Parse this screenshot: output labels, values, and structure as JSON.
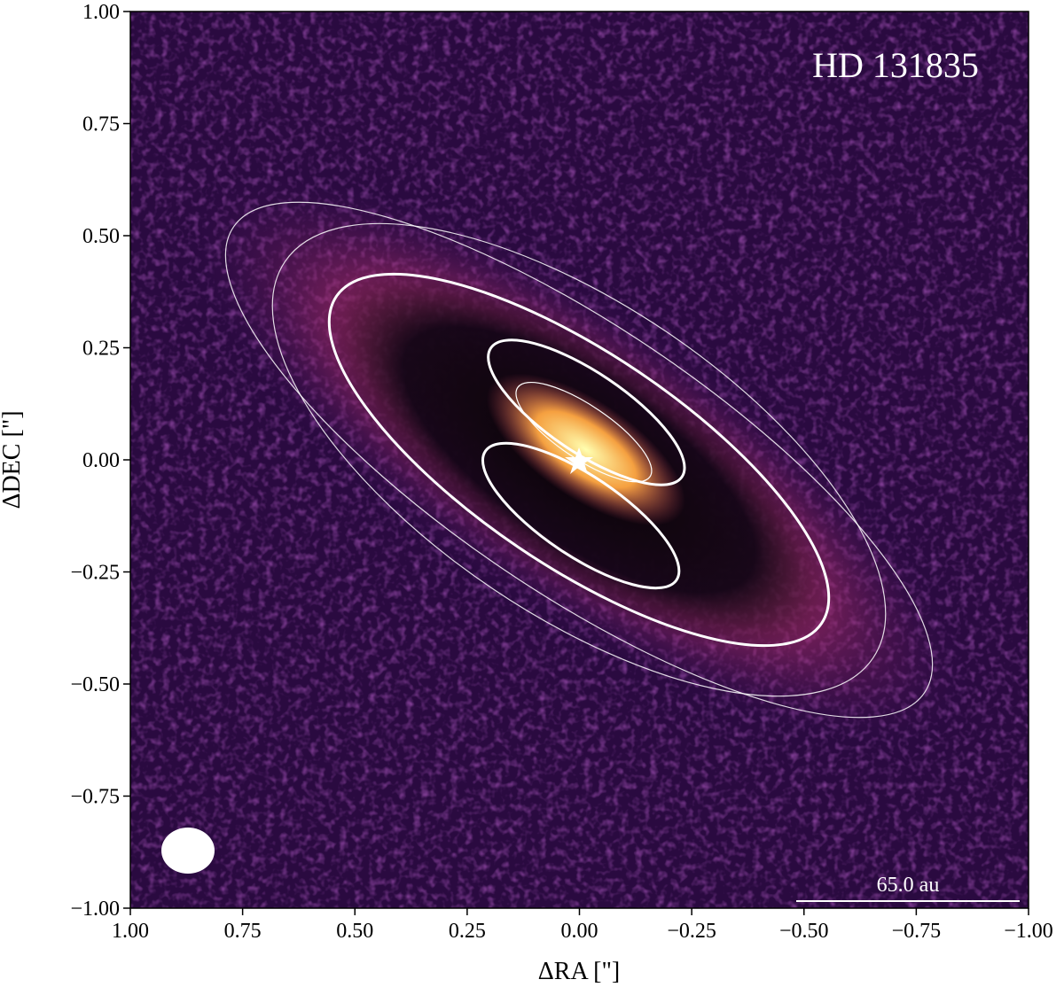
{
  "chart_data": {
    "type": "image",
    "title": "HD 131835",
    "xlabel": "ΔRA [\"]",
    "ylabel": "ΔDEC [\"]",
    "scalebar_label": "65.0 au",
    "xlim": [
      1,
      -1
    ],
    "ylim": [
      -1,
      1
    ],
    "xticks": [
      {
        "value": 1,
        "label": "1.00"
      },
      {
        "value": 0.75,
        "label": "0.75"
      },
      {
        "value": 0.5,
        "label": "0.50"
      },
      {
        "value": 0.25,
        "label": "0.25"
      },
      {
        "value": 0,
        "label": "0.00"
      },
      {
        "value": -0.25,
        "label": "−0.25"
      },
      {
        "value": -0.5,
        "label": "−0.50"
      },
      {
        "value": -0.75,
        "label": "−0.75"
      },
      {
        "value": -1,
        "label": "−1.00"
      }
    ],
    "yticks": [
      {
        "value": -1,
        "label": "−1.00"
      },
      {
        "value": -0.75,
        "label": "−0.75"
      },
      {
        "value": -0.5,
        "label": "−0.50"
      },
      {
        "value": -0.25,
        "label": "−0.25"
      },
      {
        "value": 0,
        "label": "0.00"
      },
      {
        "value": 0.25,
        "label": "0.25"
      },
      {
        "value": 0.5,
        "label": "0.50"
      },
      {
        "value": 0.75,
        "label": "0.75"
      },
      {
        "value": 1,
        "label": "1.00"
      }
    ]
  }
}
